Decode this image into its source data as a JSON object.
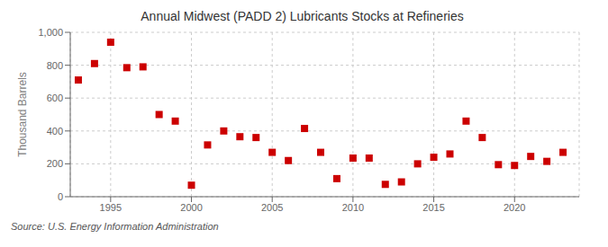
{
  "chart_data": {
    "type": "scatter",
    "title": "Annual Midwest (PADD 2) Lubricants Stocks at Refineries",
    "y_label": "Thousand Barrels",
    "annotations": [
      "Source: U.S. Energy Information Administration"
    ],
    "x": [
      1993,
      1994,
      1995,
      1996,
      1997,
      1998,
      1999,
      2000,
      2001,
      2002,
      2003,
      2004,
      2005,
      2006,
      2007,
      2008,
      2009,
      2010,
      2011,
      2012,
      2013,
      2014,
      2015,
      2016,
      2017,
      2018,
      2019,
      2020,
      2021,
      2022,
      2023
    ],
    "values": [
      710,
      810,
      940,
      785,
      790,
      500,
      460,
      70,
      315,
      400,
      365,
      360,
      270,
      220,
      415,
      270,
      110,
      235,
      235,
      75,
      90,
      200,
      240,
      260,
      460,
      360,
      195,
      190,
      245,
      215,
      270
    ],
    "color": "#cc0000",
    "marker": "square",
    "xlim": [
      1992.5,
      2024
    ],
    "xticks": [
      1995,
      2000,
      2005,
      2010,
      2015,
      2020
    ],
    "ylim": [
      0,
      1000
    ],
    "yticks": [
      0,
      200,
      400,
      600,
      800,
      {
        "value": 1000,
        "label": "1,000"
      }
    ],
    "grid": true
  }
}
